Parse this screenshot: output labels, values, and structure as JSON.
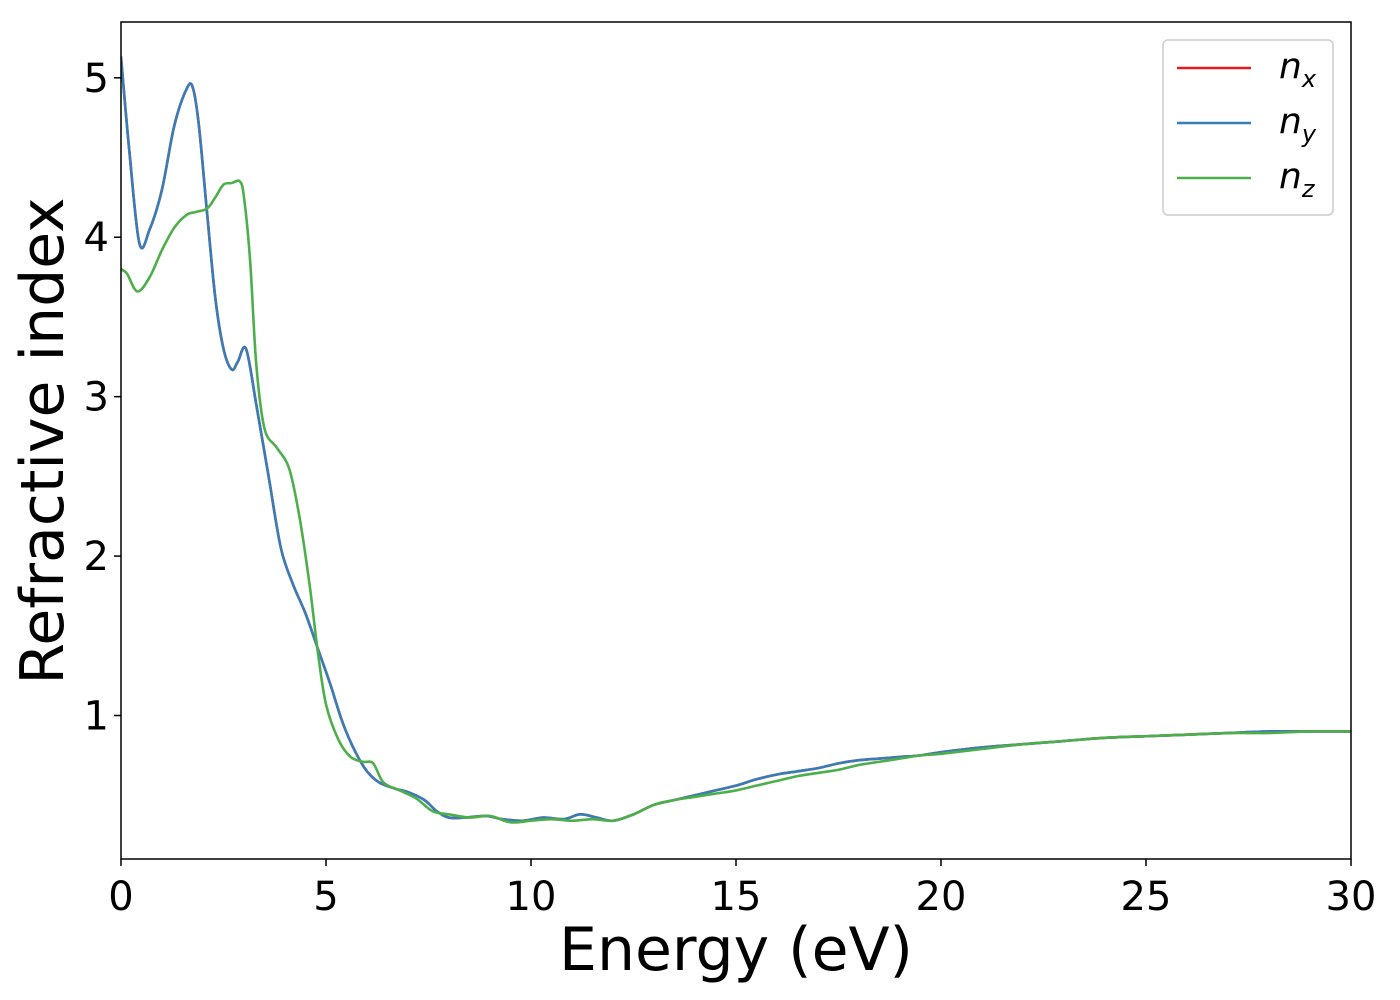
{
  "chart_data": {
    "type": "line",
    "xlabel": "Energy (eV)",
    "ylabel": "Refractive index",
    "xlim": [
      0,
      30
    ],
    "ylim": [
      0.1,
      5.35
    ],
    "grid": false,
    "legend_position": "top-right",
    "x_ticks": [
      0,
      5,
      10,
      15,
      20,
      25,
      30
    ],
    "x_tick_labels": [
      "0",
      "5",
      "10",
      "15",
      "20",
      "25",
      "30"
    ],
    "y_ticks": [
      1,
      2,
      3,
      4,
      5
    ],
    "y_tick_labels": [
      "1",
      "2",
      "3",
      "4",
      "5"
    ],
    "series": [
      {
        "name": "n",
        "subscript": "x",
        "color": "#e41a1c",
        "x": [
          0,
          0.2,
          0.45,
          0.7,
          1.0,
          1.3,
          1.6,
          1.75,
          1.9,
          2.1,
          2.3,
          2.5,
          2.7,
          2.85,
          3.05,
          3.3,
          3.6,
          3.9,
          4.2,
          4.5,
          4.8,
          5.1,
          5.4,
          5.7,
          6.0,
          6.3,
          6.7,
          7.0,
          7.4,
          7.7,
          8.0,
          8.4,
          8.9,
          9.3,
          9.8,
          10.3,
          10.8,
          11.2,
          11.6,
          12.0,
          12.5,
          13.0,
          13.5,
          14.0,
          14.5,
          15.0,
          15.5,
          16.0,
          16.5,
          17.0,
          17.5,
          18.0,
          18.5,
          19.0,
          19.5,
          20.0,
          21.0,
          22.0,
          23.0,
          24.0,
          25.0,
          26.0,
          27.0,
          28.0,
          29.0,
          30.0
        ],
        "y": [
          5.13,
          4.55,
          3.96,
          4.05,
          4.3,
          4.7,
          4.93,
          4.94,
          4.7,
          4.15,
          3.62,
          3.3,
          3.17,
          3.22,
          3.3,
          2.95,
          2.5,
          2.05,
          1.82,
          1.64,
          1.42,
          1.2,
          0.96,
          0.78,
          0.65,
          0.58,
          0.54,
          0.52,
          0.47,
          0.4,
          0.36,
          0.36,
          0.37,
          0.35,
          0.34,
          0.36,
          0.35,
          0.38,
          0.36,
          0.34,
          0.38,
          0.44,
          0.47,
          0.5,
          0.53,
          0.56,
          0.6,
          0.63,
          0.65,
          0.67,
          0.7,
          0.72,
          0.73,
          0.74,
          0.75,
          0.77,
          0.8,
          0.82,
          0.84,
          0.86,
          0.87,
          0.88,
          0.89,
          0.9,
          0.9,
          0.9
        ]
      },
      {
        "name": "n",
        "subscript": "y",
        "color": "#377eb8",
        "x": [
          0,
          0.2,
          0.45,
          0.7,
          1.0,
          1.3,
          1.6,
          1.75,
          1.9,
          2.1,
          2.3,
          2.5,
          2.7,
          2.85,
          3.05,
          3.3,
          3.6,
          3.9,
          4.2,
          4.5,
          4.8,
          5.1,
          5.4,
          5.7,
          6.0,
          6.3,
          6.7,
          7.0,
          7.4,
          7.7,
          8.0,
          8.4,
          8.9,
          9.3,
          9.8,
          10.3,
          10.8,
          11.2,
          11.6,
          12.0,
          12.5,
          13.0,
          13.5,
          14.0,
          14.5,
          15.0,
          15.5,
          16.0,
          16.5,
          17.0,
          17.5,
          18.0,
          18.5,
          19.0,
          19.5,
          20.0,
          21.0,
          22.0,
          23.0,
          24.0,
          25.0,
          26.0,
          27.0,
          28.0,
          29.0,
          30.0
        ],
        "y": [
          5.13,
          4.55,
          3.96,
          4.05,
          4.3,
          4.7,
          4.93,
          4.94,
          4.7,
          4.15,
          3.62,
          3.3,
          3.17,
          3.22,
          3.3,
          2.95,
          2.5,
          2.05,
          1.82,
          1.64,
          1.42,
          1.2,
          0.96,
          0.78,
          0.65,
          0.58,
          0.54,
          0.52,
          0.47,
          0.4,
          0.36,
          0.36,
          0.37,
          0.35,
          0.34,
          0.36,
          0.35,
          0.38,
          0.36,
          0.34,
          0.38,
          0.44,
          0.47,
          0.5,
          0.53,
          0.56,
          0.6,
          0.63,
          0.65,
          0.67,
          0.7,
          0.72,
          0.73,
          0.74,
          0.75,
          0.77,
          0.8,
          0.82,
          0.84,
          0.86,
          0.87,
          0.88,
          0.89,
          0.9,
          0.9,
          0.9
        ]
      },
      {
        "name": "n",
        "subscript": "z",
        "color": "#4daf4a",
        "x": [
          0,
          0.15,
          0.4,
          0.7,
          1.0,
          1.3,
          1.6,
          1.85,
          2.1,
          2.3,
          2.5,
          2.7,
          2.9,
          3.0,
          3.15,
          3.3,
          3.5,
          3.8,
          4.1,
          4.35,
          4.6,
          4.8,
          5.0,
          5.3,
          5.6,
          5.9,
          6.15,
          6.4,
          6.8,
          7.2,
          7.6,
          8.0,
          8.5,
          9.0,
          9.5,
          10.0,
          10.5,
          11.0,
          11.5,
          12.0,
          12.5,
          13.0,
          13.5,
          14.0,
          14.5,
          15.0,
          15.5,
          16.0,
          16.5,
          17.0,
          17.5,
          18.0,
          18.5,
          19.0,
          19.5,
          20.0,
          21.0,
          22.0,
          23.0,
          24.0,
          25.0,
          26.0,
          27.0,
          28.0,
          29.0,
          30.0
        ],
        "y": [
          3.8,
          3.77,
          3.66,
          3.75,
          3.92,
          4.06,
          4.14,
          4.16,
          4.18,
          4.25,
          4.33,
          4.34,
          4.35,
          4.25,
          3.85,
          3.2,
          2.8,
          2.68,
          2.55,
          2.25,
          1.82,
          1.4,
          1.07,
          0.85,
          0.74,
          0.71,
          0.7,
          0.58,
          0.53,
          0.48,
          0.4,
          0.38,
          0.36,
          0.37,
          0.33,
          0.34,
          0.35,
          0.34,
          0.35,
          0.34,
          0.38,
          0.44,
          0.47,
          0.49,
          0.51,
          0.53,
          0.56,
          0.59,
          0.62,
          0.64,
          0.66,
          0.69,
          0.71,
          0.73,
          0.75,
          0.76,
          0.79,
          0.82,
          0.84,
          0.86,
          0.87,
          0.88,
          0.89,
          0.89,
          0.9,
          0.9
        ]
      }
    ]
  }
}
